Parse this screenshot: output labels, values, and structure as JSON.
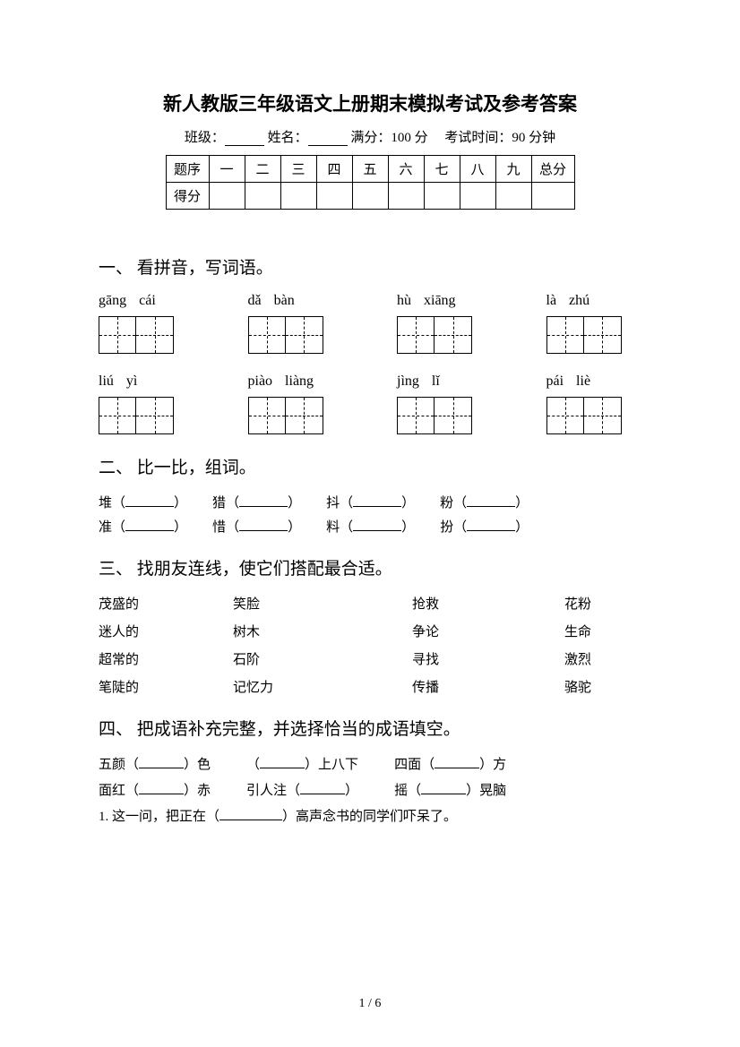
{
  "title": "新人教版三年级语文上册期末模拟考试及参考答案",
  "info": {
    "class_label": "班级：",
    "name_label": "姓名：",
    "full_score_label": "满分：",
    "full_score_value": "100 分",
    "time_label": "考试时间：",
    "time_value": "90 分钟"
  },
  "score_table": {
    "row1": [
      "题序",
      "一",
      "二",
      "三",
      "四",
      "五",
      "六",
      "七",
      "八",
      "九",
      "总分"
    ],
    "row2": [
      "得分",
      "",
      "",
      "",
      "",
      "",
      "",
      "",
      "",
      "",
      ""
    ]
  },
  "section1": {
    "title": "一、 看拼音，写词语。",
    "pinyin_rows": [
      [
        [
          "gāng",
          "cái"
        ],
        [
          "dǎ",
          "bàn"
        ],
        [
          "hù",
          "xiāng"
        ],
        [
          "là",
          "zhú"
        ]
      ],
      [
        [
          "liú",
          "yì"
        ],
        [
          "piào",
          "liàng"
        ],
        [
          "jìng",
          "lǐ"
        ],
        [
          "pái",
          "liè"
        ]
      ]
    ]
  },
  "section2": {
    "title": "二、 比一比，组词。",
    "groups": [
      [
        "堆",
        "猎",
        "抖",
        "粉"
      ],
      [
        "准",
        "惜",
        "料",
        "扮"
      ]
    ]
  },
  "section3": {
    "title": "三、 找朋友连线，使它们搭配最合适。",
    "rows": [
      [
        "茂盛的",
        "笑脸",
        "抢救",
        "花粉"
      ],
      [
        "迷人的",
        "树木",
        "争论",
        "生命"
      ],
      [
        "超常的",
        "石阶",
        "寻找",
        "激烈"
      ],
      [
        "笔陡的",
        "记忆力",
        "传播",
        "骆驼"
      ]
    ]
  },
  "section4": {
    "title": "四、 把成语补充完整，并选择恰当的成语填空。",
    "idioms_row1": [
      {
        "pre": "五颜（",
        "post": "）色"
      },
      {
        "pre": "（",
        "post": "）上八下"
      },
      {
        "pre": "四面（",
        "post": "）方"
      }
    ],
    "idioms_row2": [
      {
        "pre": "面红（",
        "post": "）赤"
      },
      {
        "pre": "引人注（",
        "post": "）"
      },
      {
        "pre": "摇（",
        "post": "）晃脑"
      }
    ],
    "sentence": "1. 这一问，把正在（",
    "sentence_end": "）高声念书的同学们吓呆了。"
  },
  "footer": "1 / 6"
}
